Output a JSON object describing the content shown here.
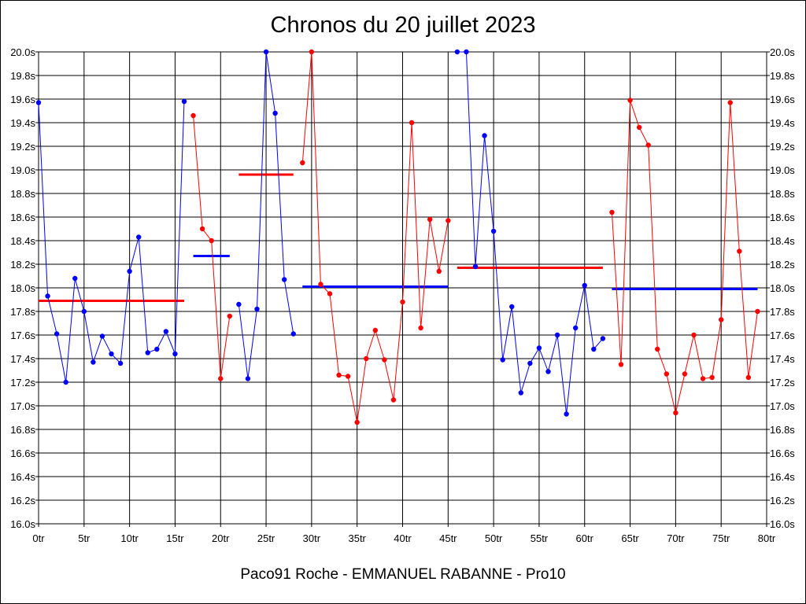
{
  "chart_data": {
    "type": "line",
    "title": "Chronos du 20 juillet 2023",
    "footer": "Paco91 Roche - EMMANUEL RABANNE - Pro10",
    "xlim": [
      0,
      80
    ],
    "ylim": [
      16.0,
      20.0
    ],
    "x_ticks": [
      "0tr",
      "5tr",
      "10tr",
      "15tr",
      "20tr",
      "25tr",
      "30tr",
      "35tr",
      "40tr",
      "45tr",
      "50tr",
      "55tr",
      "60tr",
      "65tr",
      "70tr",
      "75tr",
      "80tr"
    ],
    "y_ticks": [
      "16.0s",
      "16.2s",
      "16.4s",
      "16.6s",
      "16.8s",
      "17.0s",
      "17.2s",
      "17.4s",
      "17.6s",
      "17.8s",
      "18.0s",
      "18.2s",
      "18.4s",
      "18.6s",
      "18.8s",
      "19.0s",
      "19.2s",
      "19.4s",
      "19.6s",
      "19.8s",
      "20.0s"
    ],
    "grid": true,
    "series": [
      {
        "color": "#0000ff",
        "x": [
          0,
          1,
          2,
          3,
          4,
          5,
          6,
          7,
          8,
          9,
          10,
          11,
          12,
          13,
          14,
          15,
          16
        ],
        "values": [
          19.57,
          17.93,
          17.61,
          17.2,
          18.08,
          17.8,
          17.37,
          17.59,
          17.44,
          17.36,
          18.14,
          18.43,
          17.45,
          17.48,
          17.63,
          17.44,
          19.58
        ]
      },
      {
        "color": "#ff0000",
        "x": [
          17,
          18,
          19,
          20,
          21
        ],
        "values": [
          19.46,
          18.5,
          18.4,
          17.23,
          17.76
        ]
      },
      {
        "color": "#0000ff",
        "x": [
          22,
          23,
          24,
          25,
          26,
          27,
          28
        ],
        "values": [
          17.86,
          17.23,
          17.82,
          20.0,
          19.48,
          18.07,
          17.61
        ]
      },
      {
        "color": "#ff0000",
        "x": [
          29,
          30,
          31,
          32,
          33,
          34,
          35,
          36,
          37,
          38,
          39,
          40,
          41,
          42,
          43,
          44,
          45
        ],
        "values": [
          19.06,
          20.0,
          18.03,
          17.95,
          17.26,
          17.25,
          16.86,
          17.4,
          17.64,
          17.39,
          17.05,
          17.88,
          19.4,
          17.66,
          18.58,
          18.14,
          18.57
        ]
      },
      {
        "color": "#0000ff",
        "x": [
          46,
          47,
          48,
          49,
          50,
          51,
          52,
          53,
          54,
          55,
          56,
          57,
          58,
          59,
          60,
          61,
          62
        ],
        "values": [
          20.0,
          20.0,
          18.18,
          19.29,
          18.48,
          17.39,
          17.84,
          17.11,
          17.36,
          17.49,
          17.29,
          17.6,
          16.93,
          17.66,
          18.02,
          17.48,
          17.57
        ]
      },
      {
        "color": "#ff0000",
        "x": [
          63,
          64,
          65,
          66,
          67,
          68,
          69,
          70,
          71,
          72,
          73,
          74,
          75,
          76,
          77,
          78,
          79
        ],
        "values": [
          18.64,
          17.35,
          19.59,
          19.36,
          19.21,
          17.48,
          17.27,
          16.94,
          17.27,
          17.6,
          17.23,
          17.24,
          17.73,
          19.57,
          18.31,
          17.24,
          17.8
        ]
      }
    ],
    "averages": [
      {
        "color": "#ff0000",
        "x": [
          0,
          16
        ],
        "value": 17.89
      },
      {
        "color": "#0000ff",
        "x": [
          17,
          21
        ],
        "value": 18.27
      },
      {
        "color": "#ff0000",
        "x": [
          22,
          28
        ],
        "value": 18.96
      },
      {
        "color": "#0000ff",
        "x": [
          29,
          45
        ],
        "value": 18.01
      },
      {
        "color": "#ff0000",
        "x": [
          46,
          62
        ],
        "value": 18.17
      },
      {
        "color": "#0000ff",
        "x": [
          63,
          79
        ],
        "value": 17.99
      }
    ]
  }
}
